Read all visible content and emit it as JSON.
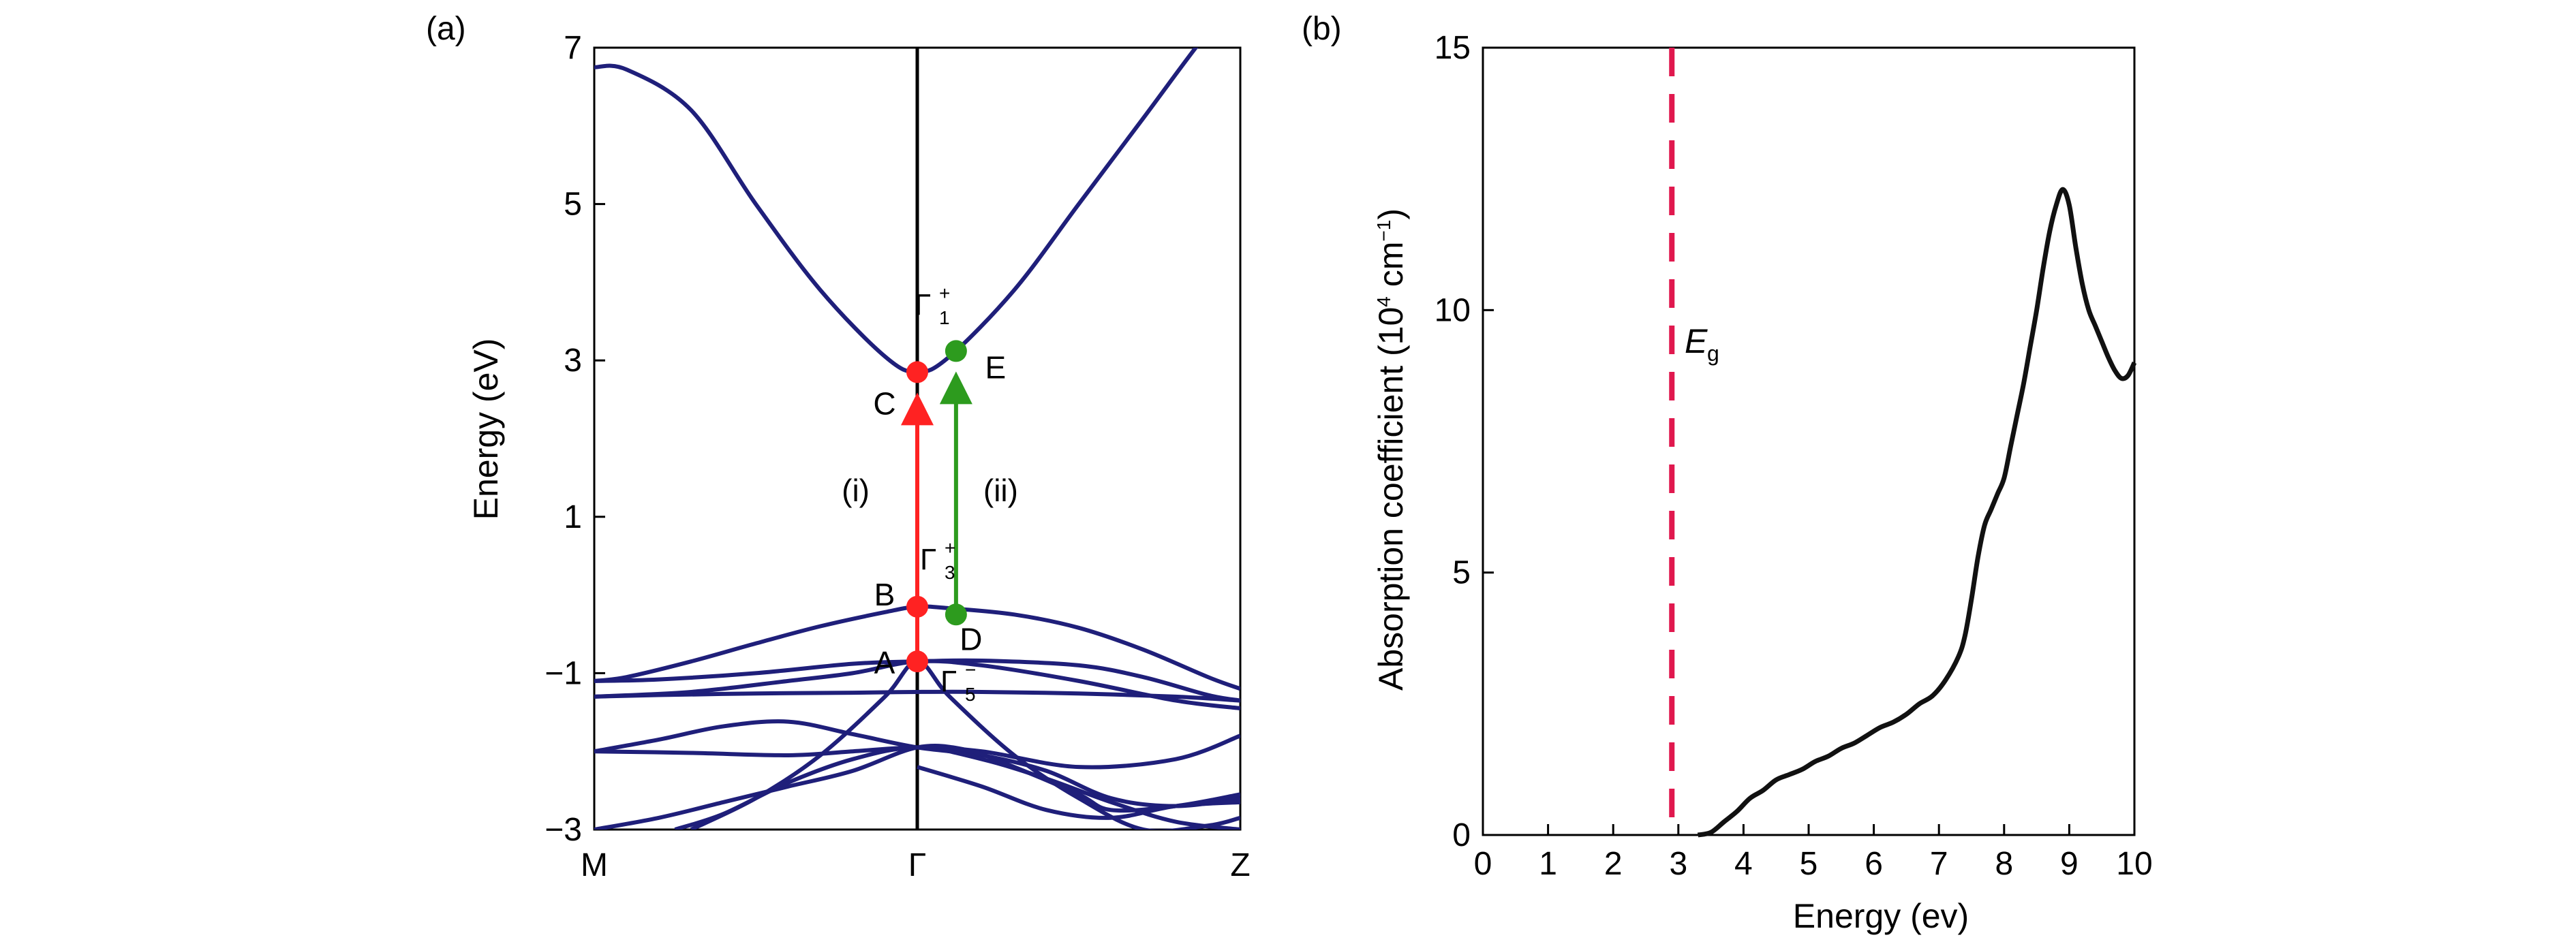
{
  "chart_data": [
    {
      "type": "line",
      "panel_label": "(a)",
      "ylabel": "Energy (eV)",
      "xlabel": "",
      "ylim": [
        -3,
        7
      ],
      "y_ticks": [
        "7",
        "5",
        "3",
        "1",
        "−1",
        "−3"
      ],
      "y_tick_values": [
        7,
        5,
        3,
        1,
        -1,
        -3
      ],
      "x_tick_labels": [
        "M",
        "Γ",
        "Z"
      ],
      "x_tick_values": [
        0,
        1,
        2
      ],
      "grid": false,
      "line_color": "#1f1f7a",
      "series": [
        {
          "x": [
            0,
            0.1,
            0.3,
            0.5,
            0.7,
            0.9,
            1.0,
            1.1,
            1.3,
            1.5,
            1.7,
            1.9,
            2.0
          ],
          "y": [
            6.75,
            6.72,
            6.2,
            5.0,
            3.9,
            3.05,
            2.85,
            3.05,
            3.9,
            5.0,
            6.1,
            7.2,
            7.6
          ]
        },
        {
          "x": [
            0,
            0.1,
            0.3,
            0.5,
            0.7,
            0.9,
            1.0,
            1.1,
            1.3,
            1.5,
            1.7,
            1.9,
            2.0
          ],
          "y": [
            -1.1,
            -1.05,
            -0.85,
            -0.62,
            -0.4,
            -0.22,
            -0.15,
            -0.17,
            -0.25,
            -0.42,
            -0.7,
            -1.05,
            -1.2
          ]
        },
        {
          "x": [
            0,
            0.2,
            0.5,
            0.8,
            1.0,
            1.2,
            1.5,
            1.7,
            1.9,
            2.0
          ],
          "y": [
            -1.1,
            -1.08,
            -1.0,
            -0.88,
            -0.85,
            -0.84,
            -0.9,
            -1.05,
            -1.28,
            -1.35
          ]
        },
        {
          "x": [
            0,
            0.2,
            0.5,
            0.8,
            1.0,
            1.2,
            1.5,
            1.8,
            2.0
          ],
          "y": [
            -1.3,
            -1.28,
            -1.26,
            -1.25,
            -1.24,
            -1.24,
            -1.26,
            -1.3,
            -1.35
          ]
        },
        {
          "x": [
            0,
            0.3,
            0.6,
            0.8,
            1.0,
            1.2,
            1.5,
            1.8,
            2.0
          ],
          "y": [
            -1.3,
            -1.24,
            -1.1,
            -1.0,
            -0.85,
            -0.9,
            -1.1,
            -1.35,
            -1.45
          ]
        },
        {
          "x": [
            0,
            0.2,
            0.4,
            0.6,
            0.8,
            1.0,
            1.2,
            1.4,
            1.6,
            1.8,
            2.0
          ],
          "y": [
            -2.0,
            -1.85,
            -1.68,
            -1.62,
            -1.78,
            -1.95,
            -2.05,
            -2.25,
            -2.6,
            -2.7,
            -2.6
          ]
        },
        {
          "x": [
            0,
            0.3,
            0.6,
            0.8,
            1.0,
            1.2,
            1.5,
            1.8,
            2.0
          ],
          "y": [
            -2.0,
            -2.02,
            -2.05,
            -2.0,
            -1.95,
            -2.0,
            -2.2,
            -2.1,
            -1.8
          ]
        },
        {
          "x": [
            0.25,
            0.4,
            0.6,
            0.8,
            1.0,
            1.2,
            1.4,
            1.6,
            1.8,
            2.0
          ],
          "y": [
            -3.0,
            -2.8,
            -2.4,
            -2.1,
            -1.95,
            -2.1,
            -2.35,
            -2.65,
            -2.9,
            -3.0
          ]
        },
        {
          "x": [
            0,
            0.2,
            0.4,
            0.6,
            0.8,
            1.0,
            1.15,
            1.3,
            1.5,
            1.6,
            1.8,
            2.0
          ],
          "y": [
            -3.0,
            -2.85,
            -2.65,
            -2.45,
            -2.25,
            -1.95,
            -1.98,
            -2.2,
            -2.55,
            -2.75,
            -2.7,
            -2.55
          ]
        },
        {
          "x": [
            0.3,
            0.5,
            0.7,
            0.9,
            1.0,
            1.1,
            1.3,
            1.5,
            1.7,
            1.9,
            2.0
          ],
          "y": [
            -3.0,
            -2.6,
            -2.05,
            -1.3,
            -0.85,
            -1.3,
            -2.05,
            -2.6,
            -3.0,
            -2.95,
            -2.85
          ]
        },
        {
          "x": [
            1.0,
            1.2,
            1.4,
            1.6,
            1.8,
            2.0
          ],
          "y": [
            -2.2,
            -2.45,
            -2.75,
            -2.85,
            -2.7,
            -2.65
          ]
        }
      ],
      "points": [
        {
          "name": "A",
          "x": 1.0,
          "y": -0.85,
          "color": "#ff2222"
        },
        {
          "name": "B",
          "x": 1.0,
          "y": -0.15,
          "color": "#ff2222"
        },
        {
          "name": "C",
          "x": 1.0,
          "y": 2.85,
          "color": "#ff2222"
        },
        {
          "name": "D",
          "x": 1.12,
          "y": -0.25,
          "color": "#2d9b1e"
        },
        {
          "name": "E",
          "x": 1.12,
          "y": 3.12,
          "color": "#2d9b1e"
        }
      ],
      "transitions": [
        {
          "name": "(i)",
          "color": "#ff2222"
        },
        {
          "name": "(ii)",
          "color": "#2d9b1e"
        }
      ],
      "symmetry_labels": {
        "gamma1": {
          "base": "Γ",
          "sup": "+",
          "sub": "1"
        },
        "gamma3": {
          "base": "Γ",
          "sup": "+",
          "sub": "3"
        },
        "gamma5": {
          "base": "Γ",
          "sup": "−",
          "sub": "5"
        }
      }
    },
    {
      "type": "line",
      "panel_label": "(b)",
      "xlabel": "Energy (ev)",
      "ylabel_parts": {
        "pre": "Absorption coefficient (10",
        "sup1": "4",
        "mid": " cm",
        "sup2": "−1",
        "post": ")"
      },
      "xlim": [
        0,
        10
      ],
      "ylim": [
        0,
        15
      ],
      "x_ticks": [
        "0",
        "1",
        "2",
        "3",
        "4",
        "5",
        "6",
        "7",
        "8",
        "9",
        "10"
      ],
      "x_tick_values": [
        0,
        1,
        2,
        3,
        4,
        5,
        6,
        7,
        8,
        9,
        10
      ],
      "y_ticks": [
        "15",
        "10",
        "5",
        "0"
      ],
      "y_tick_values": [
        15,
        10,
        5,
        0
      ],
      "grid": false,
      "line_color": "#111111",
      "eg_line": {
        "x": 2.9,
        "color": "#e0184e",
        "label_main": "E",
        "label_sub": "g"
      },
      "series": [
        {
          "x": [
            3.3,
            3.5,
            3.7,
            3.9,
            4.1,
            4.3,
            4.5,
            4.7,
            4.9,
            5.1,
            5.3,
            5.5,
            5.7,
            5.9,
            6.1,
            6.3,
            6.5,
            6.7,
            6.9,
            7.1,
            7.3,
            7.4,
            7.5,
            7.6,
            7.7,
            7.8,
            7.9,
            8.0,
            8.1,
            8.2,
            8.3,
            8.4,
            8.5,
            8.6,
            8.7,
            8.8,
            8.9,
            9.0,
            9.1,
            9.2,
            9.3,
            9.4,
            9.5,
            9.6,
            9.7,
            9.8,
            9.9,
            10.0
          ],
          "y": [
            0.0,
            0.05,
            0.25,
            0.45,
            0.7,
            0.85,
            1.05,
            1.15,
            1.25,
            1.4,
            1.5,
            1.65,
            1.75,
            1.9,
            2.05,
            2.15,
            2.3,
            2.5,
            2.65,
            2.95,
            3.4,
            3.8,
            4.5,
            5.3,
            5.9,
            6.2,
            6.5,
            6.8,
            7.4,
            8.0,
            8.6,
            9.3,
            10.0,
            10.8,
            11.5,
            12.0,
            12.3,
            12.0,
            11.2,
            10.5,
            10.0,
            9.7,
            9.4,
            9.1,
            8.85,
            8.7,
            8.75,
            9.0
          ]
        }
      ]
    }
  ]
}
